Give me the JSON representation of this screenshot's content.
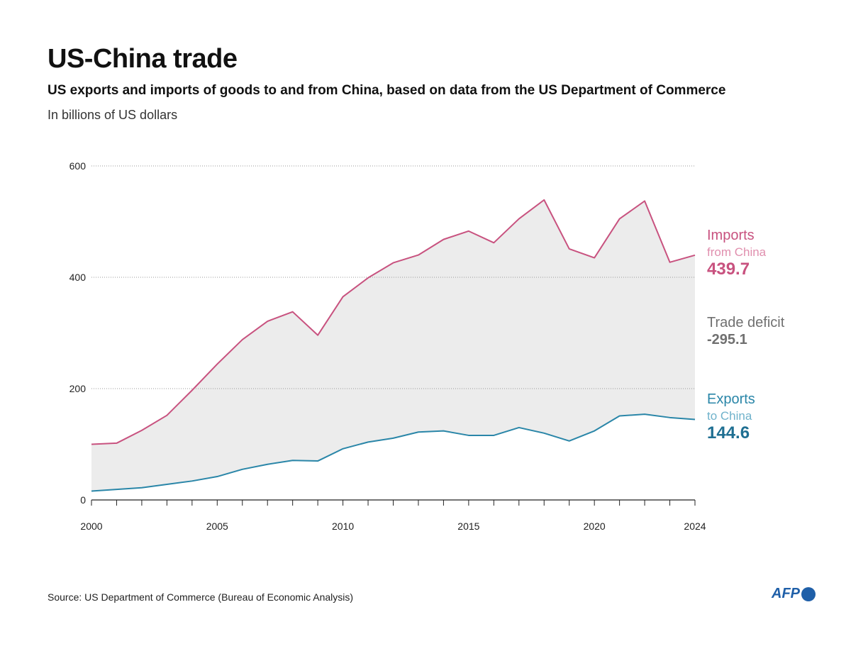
{
  "header": {
    "title": "US-China trade",
    "subtitle": "US exports and imports of goods to and from China, based on data from the US Department of Commerce",
    "unit": "In billions of US dollars"
  },
  "footer": {
    "source": "Source: US Department of Commerce (Bureau of Economic Analysis)",
    "logo": "AFP"
  },
  "colors": {
    "imports": "#c8527f",
    "exports": "#2a86a8",
    "deficit": "#707070",
    "fill": "#ececec"
  },
  "chart_data": {
    "type": "line",
    "title": "US-China trade",
    "ylim": [
      0,
      600
    ],
    "xlim": [
      2000,
      2024
    ],
    "yticks": [
      0,
      200,
      400,
      600
    ],
    "xticks": [
      2000,
      2005,
      2010,
      2015,
      2020,
      2024
    ],
    "grid": "horizontal dotted",
    "area_between_series": true,
    "x": [
      2000,
      2001,
      2002,
      2003,
      2004,
      2005,
      2006,
      2007,
      2008,
      2009,
      2010,
      2011,
      2012,
      2013,
      2014,
      2015,
      2016,
      2017,
      2018,
      2019,
      2020,
      2021,
      2022,
      2023,
      2024
    ],
    "series": [
      {
        "name": "Imports from China",
        "values": [
          100,
          102,
          125,
          152,
          197,
          244,
          288,
          321,
          338,
          296,
          365,
          399,
          426,
          440,
          468,
          483,
          462,
          505,
          539,
          451,
          435,
          505,
          537,
          427,
          439.7
        ]
      },
      {
        "name": "Exports to China",
        "values": [
          16,
          19,
          22,
          28,
          34,
          42,
          55,
          64,
          71,
          70,
          92,
          104,
          111,
          122,
          124,
          116,
          116,
          130,
          120,
          106,
          124,
          151,
          154,
          148,
          144.6
        ]
      }
    ],
    "annotations": {
      "imports": {
        "line1": "Imports",
        "line2": "from China",
        "value": "439.7"
      },
      "deficit": {
        "line1": "Trade deficit",
        "value": "-295.1"
      },
      "exports": {
        "line1": "Exports",
        "line2": "to China",
        "value": "144.6"
      }
    }
  }
}
